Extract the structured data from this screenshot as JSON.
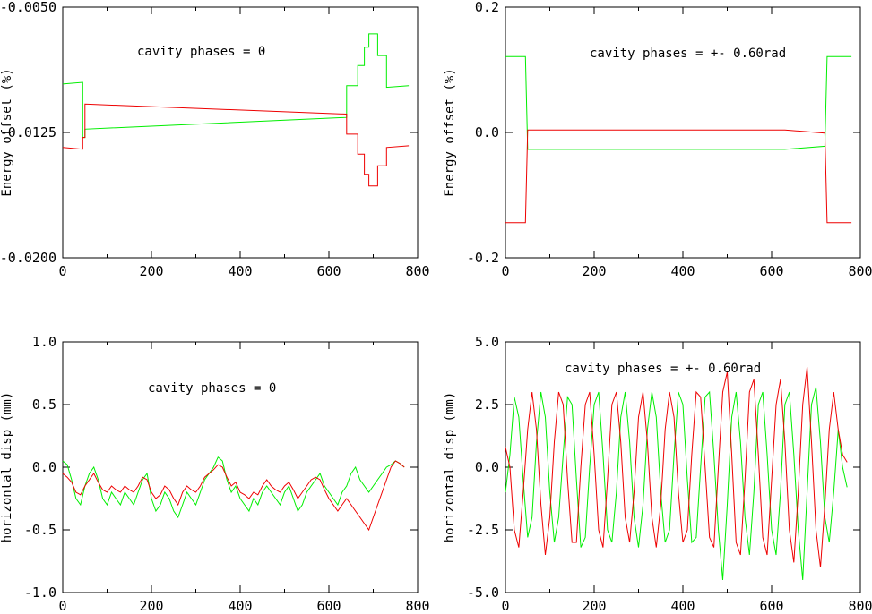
{
  "chart_data": [
    {
      "type": "line",
      "annotation": "cavity phases = 0",
      "ylabel": "Energy offset (%)",
      "xlim": [
        0,
        800
      ],
      "ylim": [
        -0.02,
        -0.005
      ],
      "xticks": [
        "0",
        "200",
        "400",
        "600",
        "800"
      ],
      "yticks": [
        {
          "value": -0.02,
          "label": "-0.0200"
        },
        {
          "value": -0.0125,
          "label": "-0.0125"
        },
        {
          "value": -0.005,
          "label": "-0.0050"
        }
      ],
      "series": [
        {
          "color": "#00ee00",
          "x": [
            0,
            45,
            45,
            50,
            50,
            640,
            640,
            665,
            665,
            680,
            680,
            690,
            690,
            710,
            710,
            730,
            730,
            780
          ],
          "y": [
            -0.0096,
            -0.0095,
            -0.0128,
            -0.0128,
            -0.0123,
            -0.0116,
            -0.0097,
            -0.0097,
            -0.0085,
            -0.0085,
            -0.0074,
            -0.0074,
            -0.0066,
            -0.0066,
            -0.0079,
            -0.0079,
            -0.0098,
            -0.0097
          ]
        },
        {
          "color": "#ee0000",
          "x": [
            0,
            45,
            45,
            50,
            50,
            640,
            640,
            665,
            665,
            680,
            680,
            690,
            690,
            710,
            710,
            730,
            730,
            780
          ],
          "y": [
            -0.0134,
            -0.0135,
            -0.0128,
            -0.0128,
            -0.0108,
            -0.0114,
            -0.0126,
            -0.0126,
            -0.0138,
            -0.0138,
            -0.015,
            -0.015,
            -0.0157,
            -0.0157,
            -0.0145,
            -0.0145,
            -0.0134,
            -0.0133
          ]
        }
      ]
    },
    {
      "type": "line",
      "annotation": "cavity phases = +- 0.60rad",
      "ylabel": "Energy offset (%)",
      "xlim": [
        0,
        800
      ],
      "ylim": [
        -0.2,
        0.2
      ],
      "xticks": [
        "0",
        "200",
        "400",
        "600",
        "800"
      ],
      "yticks": [
        {
          "value": -0.2,
          "label": "-0.2"
        },
        {
          "value": 0.0,
          "label": "0.0"
        },
        {
          "value": 0.2,
          "label": "0.2"
        }
      ],
      "series": [
        {
          "color": "#00ee00",
          "x": [
            0,
            45,
            50,
            630,
            720,
            725,
            780
          ],
          "y": [
            0.121,
            0.121,
            -0.027,
            -0.027,
            -0.022,
            0.121,
            0.121
          ]
        },
        {
          "color": "#ee0000",
          "x": [
            0,
            45,
            50,
            630,
            720,
            725,
            780
          ],
          "y": [
            -0.144,
            -0.144,
            0.004,
            0.004,
            -0.001,
            -0.144,
            -0.144
          ]
        }
      ]
    },
    {
      "type": "line",
      "annotation": "cavity phases = 0",
      "ylabel": "horizontal disp (mm)",
      "xlim": [
        0,
        800
      ],
      "ylim": [
        -1.0,
        1.0
      ],
      "xticks": [
        "0",
        "200",
        "400",
        "600",
        "800"
      ],
      "yticks": [
        {
          "value": -1.0,
          "label": "-1.0"
        },
        {
          "value": -0.5,
          "label": "-0.5"
        },
        {
          "value": 0.0,
          "label": "0.0"
        },
        {
          "value": 0.5,
          "label": "0.5"
        },
        {
          "value": 1.0,
          "label": "1.0"
        }
      ],
      "series": [
        {
          "color": "#00ee00",
          "x": [
            0,
            10,
            20,
            30,
            40,
            50,
            60,
            70,
            80,
            90,
            100,
            110,
            120,
            130,
            140,
            150,
            160,
            170,
            180,
            190,
            200,
            210,
            220,
            230,
            240,
            250,
            260,
            270,
            280,
            290,
            300,
            310,
            320,
            330,
            340,
            350,
            360,
            370,
            380,
            390,
            400,
            410,
            420,
            430,
            440,
            450,
            460,
            470,
            480,
            490,
            500,
            510,
            520,
            530,
            540,
            550,
            560,
            570,
            580,
            590,
            600,
            610,
            620,
            630,
            640,
            650,
            660,
            670,
            680,
            690,
            700,
            710,
            720,
            730,
            740,
            750,
            760,
            770
          ],
          "y": [
            0.05,
            0.02,
            -0.1,
            -0.25,
            -0.3,
            -0.15,
            -0.05,
            0.0,
            -0.1,
            -0.25,
            -0.3,
            -0.2,
            -0.25,
            -0.3,
            -0.2,
            -0.25,
            -0.3,
            -0.2,
            -0.1,
            -0.05,
            -0.25,
            -0.35,
            -0.3,
            -0.2,
            -0.25,
            -0.35,
            -0.4,
            -0.3,
            -0.2,
            -0.25,
            -0.3,
            -0.2,
            -0.1,
            -0.05,
            0.0,
            0.08,
            0.05,
            -0.1,
            -0.2,
            -0.15,
            -0.25,
            -0.3,
            -0.35,
            -0.25,
            -0.3,
            -0.2,
            -0.15,
            -0.2,
            -0.25,
            -0.3,
            -0.2,
            -0.15,
            -0.25,
            -0.35,
            -0.3,
            -0.2,
            -0.15,
            -0.1,
            -0.05,
            -0.15,
            -0.2,
            -0.25,
            -0.3,
            -0.2,
            -0.15,
            -0.05,
            0.0,
            -0.1,
            -0.15,
            -0.2,
            -0.15,
            -0.1,
            -0.05,
            0.0,
            0.02,
            0.05,
            0.03,
            0.0
          ]
        },
        {
          "color": "#ee0000",
          "x": [
            0,
            10,
            20,
            30,
            40,
            50,
            60,
            70,
            80,
            90,
            100,
            110,
            120,
            130,
            140,
            150,
            160,
            170,
            180,
            190,
            200,
            210,
            220,
            230,
            240,
            250,
            260,
            270,
            280,
            290,
            300,
            310,
            320,
            330,
            340,
            350,
            360,
            370,
            380,
            390,
            400,
            410,
            420,
            430,
            440,
            450,
            460,
            470,
            480,
            490,
            500,
            510,
            520,
            530,
            540,
            550,
            560,
            570,
            580,
            590,
            600,
            610,
            620,
            630,
            640,
            650,
            660,
            670,
            680,
            690,
            700,
            710,
            720,
            730,
            740,
            750,
            760,
            770
          ],
          "y": [
            -0.05,
            -0.08,
            -0.12,
            -0.2,
            -0.22,
            -0.15,
            -0.1,
            -0.05,
            -0.12,
            -0.18,
            -0.2,
            -0.15,
            -0.18,
            -0.2,
            -0.15,
            -0.18,
            -0.2,
            -0.15,
            -0.08,
            -0.1,
            -0.2,
            -0.25,
            -0.22,
            -0.15,
            -0.18,
            -0.25,
            -0.3,
            -0.2,
            -0.15,
            -0.18,
            -0.2,
            -0.15,
            -0.08,
            -0.05,
            -0.02,
            0.02,
            0.0,
            -0.08,
            -0.15,
            -0.12,
            -0.2,
            -0.22,
            -0.25,
            -0.2,
            -0.22,
            -0.15,
            -0.1,
            -0.15,
            -0.18,
            -0.2,
            -0.15,
            -0.12,
            -0.18,
            -0.25,
            -0.2,
            -0.15,
            -0.1,
            -0.08,
            -0.1,
            -0.18,
            -0.25,
            -0.3,
            -0.35,
            -0.3,
            -0.25,
            -0.3,
            -0.35,
            -0.4,
            -0.45,
            -0.5,
            -0.4,
            -0.3,
            -0.2,
            -0.1,
            0.0,
            0.05,
            0.03,
            0.0
          ]
        }
      ]
    },
    {
      "type": "line",
      "annotation": "cavity phases = +- 0.60rad",
      "ylabel": "horizontal disp (mm)",
      "xlim": [
        0,
        800
      ],
      "ylim": [
        -5.0,
        5.0
      ],
      "xticks": [
        "0",
        "200",
        "400",
        "600",
        "800"
      ],
      "yticks": [
        {
          "value": -5.0,
          "label": "-5.0"
        },
        {
          "value": -2.5,
          "label": "-2.5"
        },
        {
          "value": 0.0,
          "label": "0.0"
        },
        {
          "value": 2.5,
          "label": "2.5"
        },
        {
          "value": 5.0,
          "label": "5.0"
        }
      ],
      "series": [
        {
          "color": "#00ee00",
          "x": [
            0,
            10,
            20,
            30,
            40,
            50,
            60,
            70,
            80,
            90,
            100,
            110,
            120,
            130,
            140,
            150,
            160,
            170,
            180,
            190,
            200,
            210,
            220,
            230,
            240,
            250,
            260,
            270,
            280,
            290,
            300,
            310,
            320,
            330,
            340,
            350,
            360,
            370,
            380,
            390,
            400,
            410,
            420,
            430,
            440,
            450,
            460,
            470,
            480,
            490,
            500,
            510,
            520,
            530,
            540,
            550,
            560,
            570,
            580,
            590,
            600,
            610,
            620,
            630,
            640,
            650,
            660,
            670,
            680,
            690,
            700,
            710,
            720,
            730,
            740,
            750,
            760,
            770
          ],
          "y": [
            -1.0,
            0.5,
            2.8,
            2.0,
            -0.5,
            -2.8,
            -2.0,
            1.0,
            3.0,
            2.0,
            -1.0,
            -3.0,
            -2.0,
            0.5,
            2.8,
            2.5,
            -0.5,
            -3.2,
            -2.8,
            0.0,
            2.5,
            3.0,
            0.5,
            -2.5,
            -3.0,
            -1.0,
            2.0,
            3.0,
            1.0,
            -2.0,
            -3.2,
            -1.5,
            1.5,
            3.0,
            2.0,
            -1.0,
            -3.0,
            -2.5,
            0.5,
            3.0,
            2.5,
            -0.5,
            -3.0,
            -2.8,
            0.0,
            2.8,
            3.0,
            0.5,
            -2.5,
            -4.5,
            -1.5,
            2.0,
            3.0,
            1.0,
            -2.0,
            -3.5,
            -1.0,
            2.5,
            3.0,
            0.5,
            -2.5,
            -3.5,
            -1.0,
            2.5,
            3.0,
            0.5,
            -2.5,
            -4.5,
            -1.0,
            2.5,
            3.2,
            1.0,
            -2.0,
            -3.0,
            -1.0,
            1.5,
            0.0,
            -0.8
          ]
        },
        {
          "color": "#ee0000",
          "x": [
            0,
            10,
            20,
            30,
            40,
            50,
            60,
            70,
            80,
            90,
            100,
            110,
            120,
            130,
            140,
            150,
            160,
            170,
            180,
            190,
            200,
            210,
            220,
            230,
            240,
            250,
            260,
            270,
            280,
            290,
            300,
            310,
            320,
            330,
            340,
            350,
            360,
            370,
            380,
            390,
            400,
            410,
            420,
            430,
            440,
            450,
            460,
            470,
            480,
            490,
            500,
            510,
            520,
            530,
            540,
            550,
            560,
            570,
            580,
            590,
            600,
            610,
            620,
            630,
            640,
            650,
            660,
            670,
            680,
            690,
            700,
            710,
            720,
            730,
            740,
            750,
            760,
            770
          ],
          "y": [
            0.8,
            0.0,
            -2.5,
            -3.2,
            -1.0,
            1.5,
            3.0,
            1.5,
            -1.5,
            -3.5,
            -2.0,
            1.0,
            3.0,
            2.5,
            -0.5,
            -3.0,
            -3.0,
            0.0,
            2.5,
            3.0,
            0.5,
            -2.5,
            -3.2,
            -0.5,
            2.5,
            3.0,
            1.0,
            -2.0,
            -3.0,
            -1.0,
            2.0,
            3.0,
            1.0,
            -2.0,
            -3.2,
            -1.5,
            1.5,
            3.0,
            2.0,
            -1.0,
            -3.0,
            -2.5,
            0.5,
            3.0,
            2.8,
            0.0,
            -2.8,
            -3.2,
            0.0,
            3.0,
            3.8,
            0.5,
            -3.0,
            -3.5,
            -0.5,
            3.0,
            3.5,
            0.5,
            -2.8,
            -3.5,
            -0.5,
            2.5,
            3.5,
            1.0,
            -2.5,
            -3.8,
            -1.0,
            2.5,
            4.0,
            1.0,
            -2.5,
            -4.0,
            -1.5,
            1.5,
            3.0,
            1.5,
            0.5,
            0.2
          ]
        }
      ]
    }
  ]
}
